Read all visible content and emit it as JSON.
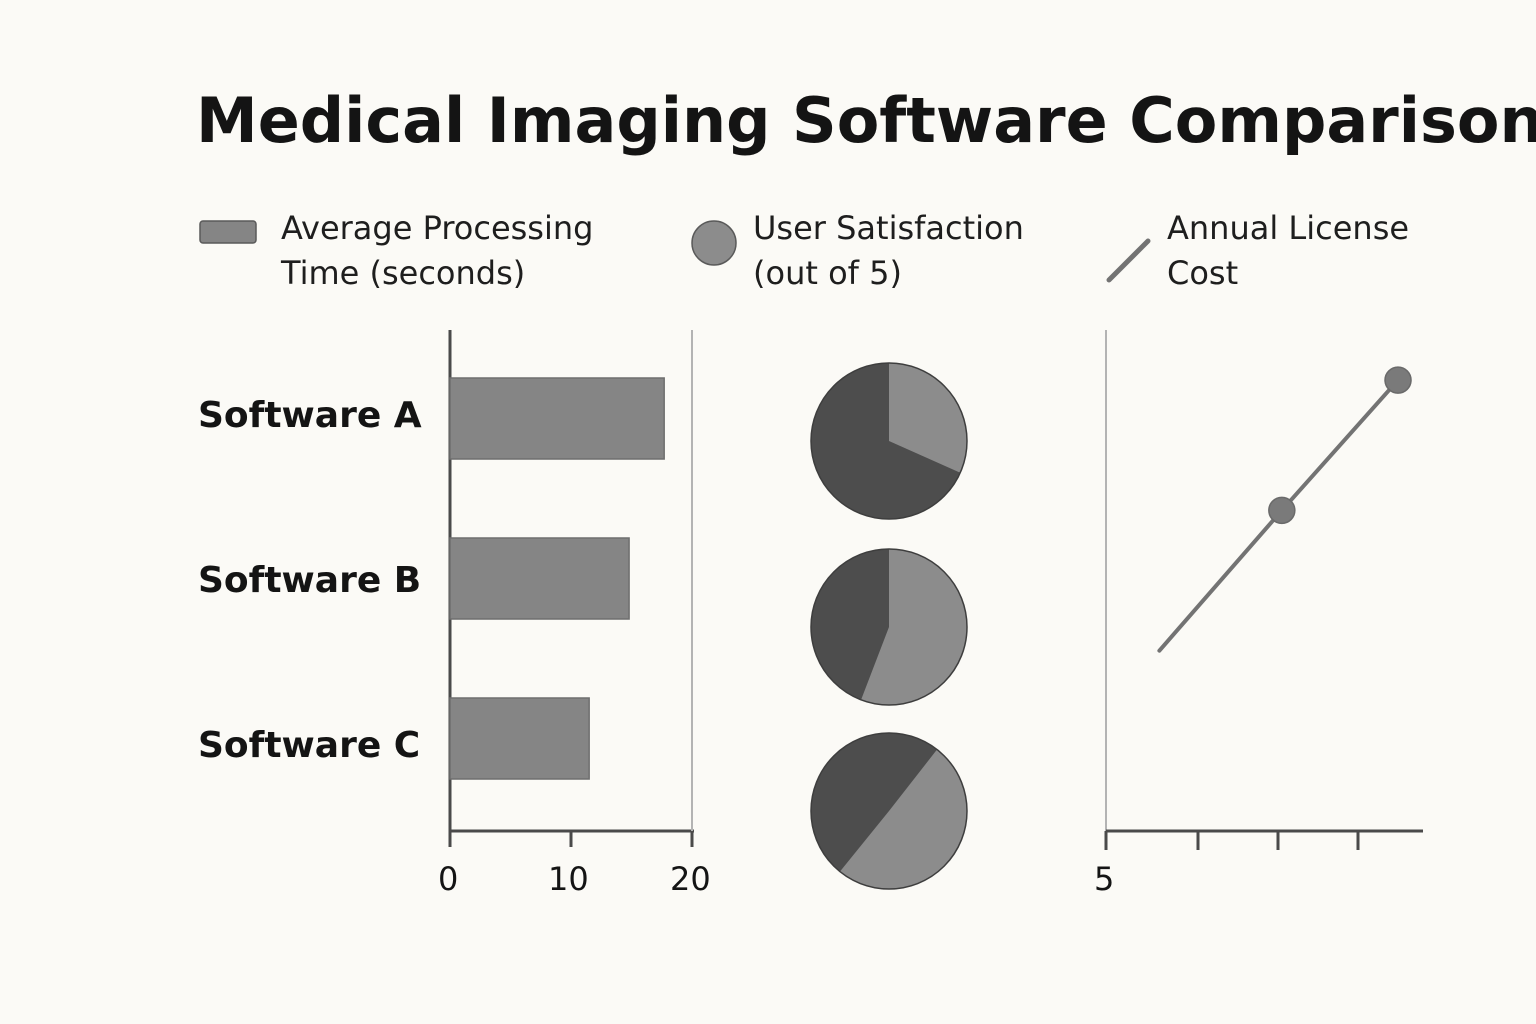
{
  "title": "Medical Imaging Software Comparison",
  "legend": [
    {
      "line1": "Average Processing",
      "line2": "Time (seconds)"
    },
    {
      "line1": "User Satisfaction",
      "line2": "(out of 5)"
    },
    {
      "line1": "Annual License",
      "line2": "Cost"
    }
  ],
  "colors": {
    "bar": "#858585",
    "pie_dark": "#4d4d4d",
    "pie_light": "#8c8c8c",
    "axis": "#4a4a4a",
    "line": "#737373"
  },
  "chart_data": [
    {
      "type": "bar",
      "orientation": "horizontal",
      "series_name": "Average Processing Time (seconds)",
      "categories": [
        "Software A",
        "Software B",
        "Software C"
      ],
      "values": [
        17.7,
        14.8,
        11.5
      ],
      "xlim": [
        0,
        20
      ],
      "x_ticks": [
        "0",
        "10",
        "20"
      ]
    },
    {
      "type": "pie",
      "series_name": "User Satisfaction (out of 5)",
      "categories": [
        "Software A",
        "Software B",
        "Software C"
      ],
      "pies": [
        {
          "dark_fraction": 0.69,
          "start_deg": 0,
          "end_deg": 114
        },
        {
          "dark_fraction": 0.37,
          "start_deg": 0,
          "end_deg": 201
        },
        {
          "dark_fraction": 0.61,
          "start_deg": 38,
          "end_deg": 219
        }
      ]
    },
    {
      "type": "line",
      "series_name": "Annual License Cost",
      "x_ticks": [
        "5"
      ],
      "points": [
        {
          "x": 0.17,
          "y": 0.36,
          "marker": false
        },
        {
          "x": 0.56,
          "y": 0.64,
          "marker": true
        },
        {
          "x": 0.93,
          "y": 0.9,
          "marker": true
        }
      ]
    }
  ]
}
